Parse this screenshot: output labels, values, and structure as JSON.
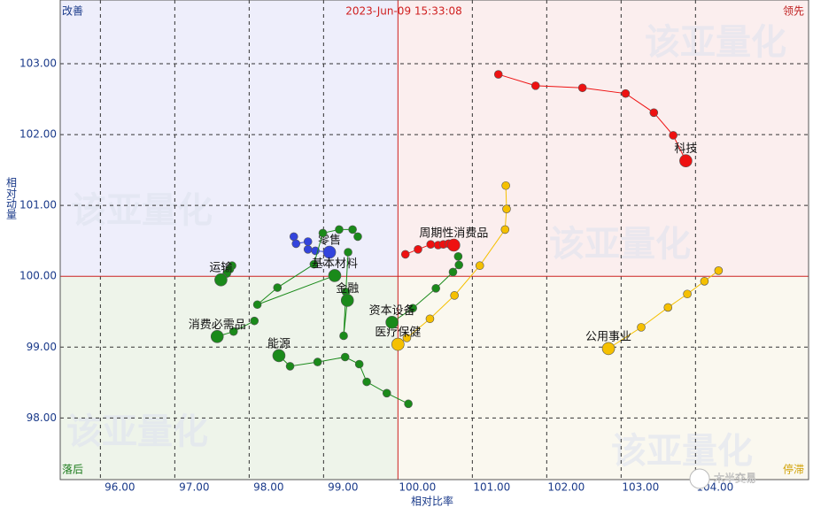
{
  "chart_data": {
    "type": "line",
    "title": "2023-Jun-09 15:33:08",
    "x_label": "相对比率",
    "y_label": "相对动量",
    "quadrants": {
      "top_left": "改善",
      "top_right": "领先",
      "bottom_left": "落后",
      "bottom_right": "停滞"
    },
    "watermarks": [
      "该亚量化",
      "该亚量化",
      "该亚量化",
      "该亚量化",
      "该亚量化"
    ],
    "brand": "木半交易",
    "xlim": [
      95.46,
      105.52
    ],
    "ylim": [
      97.13,
      103.9
    ],
    "xticks": [
      {
        "value": 96,
        "label": "96.00"
      },
      {
        "value": 97,
        "label": "97.00"
      },
      {
        "value": 98,
        "label": "98.00"
      },
      {
        "value": 99,
        "label": "99.00"
      },
      {
        "value": 100,
        "label": "100.00"
      },
      {
        "value": 101,
        "label": "101.00"
      },
      {
        "value": 102,
        "label": "102.00"
      },
      {
        "value": 103,
        "label": "103.00"
      },
      {
        "value": 104,
        "label": "104.00"
      }
    ],
    "yticks": [
      {
        "value": 98,
        "label": "98.00"
      },
      {
        "value": 99,
        "label": "99.00"
      },
      {
        "value": 100,
        "label": "100.00"
      },
      {
        "value": 101,
        "label": "101.00"
      },
      {
        "value": 102,
        "label": "102.00"
      },
      {
        "value": 103,
        "label": "103.00"
      }
    ],
    "grid": true,
    "series": [
      {
        "name": "科技",
        "color": "#ee1111",
        "x": [
          101.35,
          101.85,
          102.48,
          103.06,
          103.44,
          103.7,
          103.87
        ],
        "values": [
          102.85,
          102.69,
          102.66,
          102.58,
          102.31,
          101.99,
          101.63
        ]
      },
      {
        "name": "周期性消费品",
        "color": "#ee1111",
        "x": [
          100.1,
          100.27,
          100.44,
          100.54,
          100.61,
          100.68,
          100.75
        ],
        "values": [
          100.31,
          100.38,
          100.45,
          100.44,
          100.45,
          100.46,
          100.44
        ]
      },
      {
        "name": "公用事业",
        "color": "#f5c000",
        "x": [
          104.31,
          104.12,
          103.89,
          103.63,
          103.27,
          102.83
        ],
        "values": [
          100.08,
          99.93,
          99.75,
          99.56,
          99.28,
          98.98
        ]
      },
      {
        "name": "医疗保健",
        "color": "#f5c000",
        "x": [
          101.45,
          101.46,
          101.44,
          101.1,
          100.76,
          100.43,
          100.12,
          100.0
        ],
        "values": [
          101.28,
          100.95,
          100.66,
          100.15,
          99.73,
          99.4,
          99.13,
          99.04
        ]
      },
      {
        "name": "零售",
        "color": "#3344dd",
        "x": [
          98.6,
          98.63,
          98.79,
          98.79,
          98.89,
          99.08
        ],
        "values": [
          100.56,
          100.46,
          100.49,
          100.38,
          100.36,
          100.34
        ]
      },
      {
        "name": "运输",
        "color": "#1a8a1a",
        "x": [
          97.77,
          97.74,
          97.7,
          97.64,
          97.62
        ],
        "values": [
          100.15,
          100.1,
          100.04,
          99.98,
          99.95
        ]
      },
      {
        "name": "消费必需品",
        "color": "#1a8a1a",
        "x": [
          98.07,
          97.79,
          97.57
        ],
        "values": [
          99.37,
          99.22,
          99.15
        ]
      },
      {
        "name": "能源",
        "color": "#1a8a1a",
        "x": [
          100.14,
          99.85,
          99.58,
          99.48,
          99.29,
          98.92,
          98.55,
          98.4
        ],
        "values": [
          98.2,
          98.35,
          98.51,
          98.76,
          98.86,
          98.79,
          98.73,
          98.88
        ]
      },
      {
        "name": "基本材料",
        "color": "#1a8a1a",
        "x": [
          99.46,
          99.39,
          99.21,
          98.99,
          98.87,
          98.38,
          98.11,
          99.15
        ],
        "values": [
          100.56,
          100.66,
          100.66,
          100.61,
          100.17,
          99.84,
          99.6,
          100.01
        ]
      },
      {
        "name": "金融",
        "color": "#1a8a1a",
        "x": [
          99.33,
          99.3,
          99.27,
          99.32
        ],
        "values": [
          100.34,
          99.78,
          99.16,
          99.66
        ]
      },
      {
        "name": "资本设备",
        "color": "#1a8a1a",
        "x": [
          100.81,
          100.82,
          100.74,
          100.51,
          100.2,
          99.92
        ],
        "values": [
          100.28,
          100.16,
          100.06,
          99.83,
          99.55,
          99.35
        ]
      }
    ]
  }
}
